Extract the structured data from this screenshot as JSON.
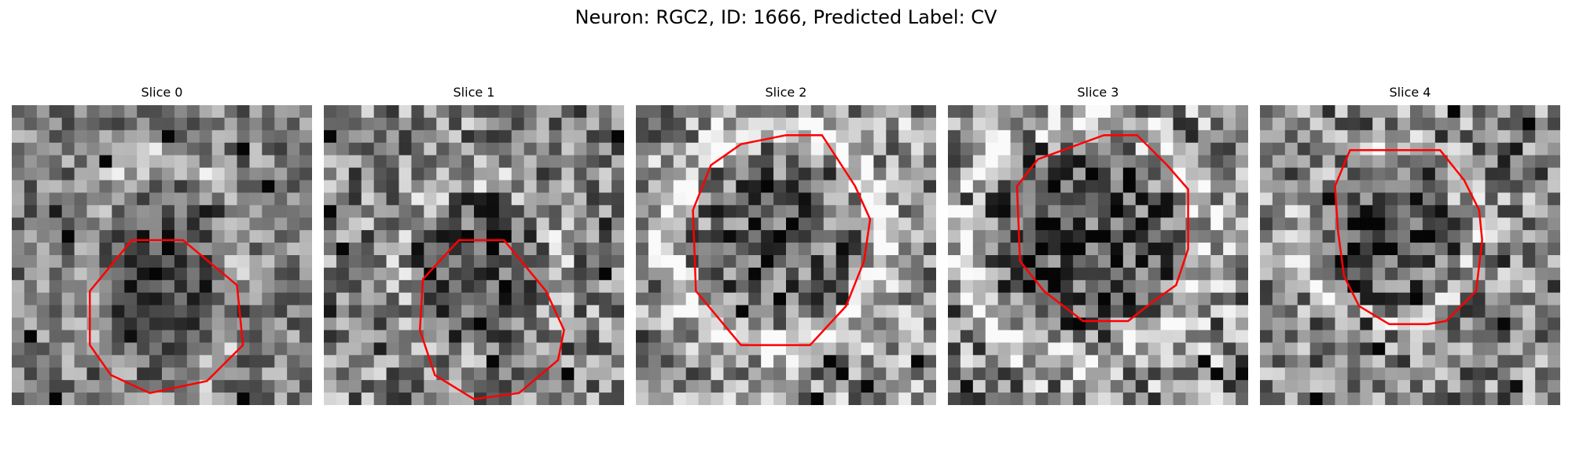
{
  "figure": {
    "title": "Neuron: RGC2, ID: 1666, Predicted Label: CV"
  },
  "style": {
    "contour_color": "#ff0000",
    "background_color": "#ffffff",
    "colormap": "gray"
  },
  "panels": [
    {
      "title": "Slice 0",
      "seed": 11,
      "contrast": 0.55,
      "base": 0.5
    },
    {
      "title": "Slice 1",
      "seed": 27,
      "contrast": 0.7,
      "base": 0.52
    },
    {
      "title": "Slice 2",
      "seed": 43,
      "contrast": 0.75,
      "base": 0.58
    },
    {
      "title": "Slice 3",
      "seed": 59,
      "contrast": 0.8,
      "base": 0.55
    },
    {
      "title": "Slice 4",
      "seed": 71,
      "contrast": 0.72,
      "base": 0.52
    }
  ]
}
